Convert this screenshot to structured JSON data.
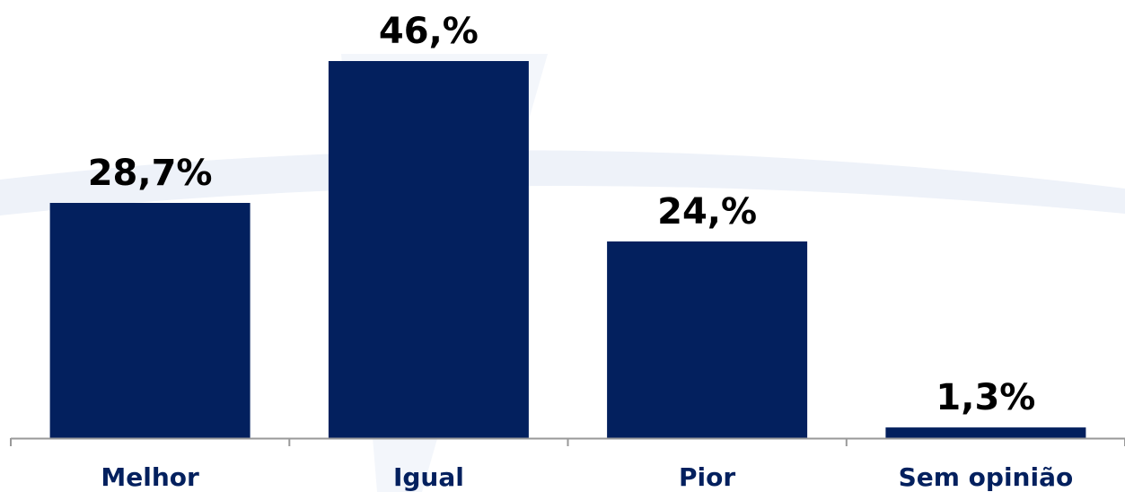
{
  "chart_data": {
    "type": "bar",
    "categories": [
      "Melhor",
      "Igual",
      "Pior",
      "Sem opinião"
    ],
    "values": [
      28.7,
      46.0,
      24.0,
      1.3
    ],
    "data_labels": [
      "28,7%",
      "46,%",
      "24,%",
      "1,3%"
    ],
    "title": "",
    "xlabel": "",
    "ylabel": "",
    "ylim": [
      0,
      50
    ],
    "grid": false,
    "legend": "none"
  },
  "colors": {
    "bar": "#03205e",
    "category_text": "#03205e",
    "axis": "#999999",
    "watermark": "#eef2f9"
  }
}
